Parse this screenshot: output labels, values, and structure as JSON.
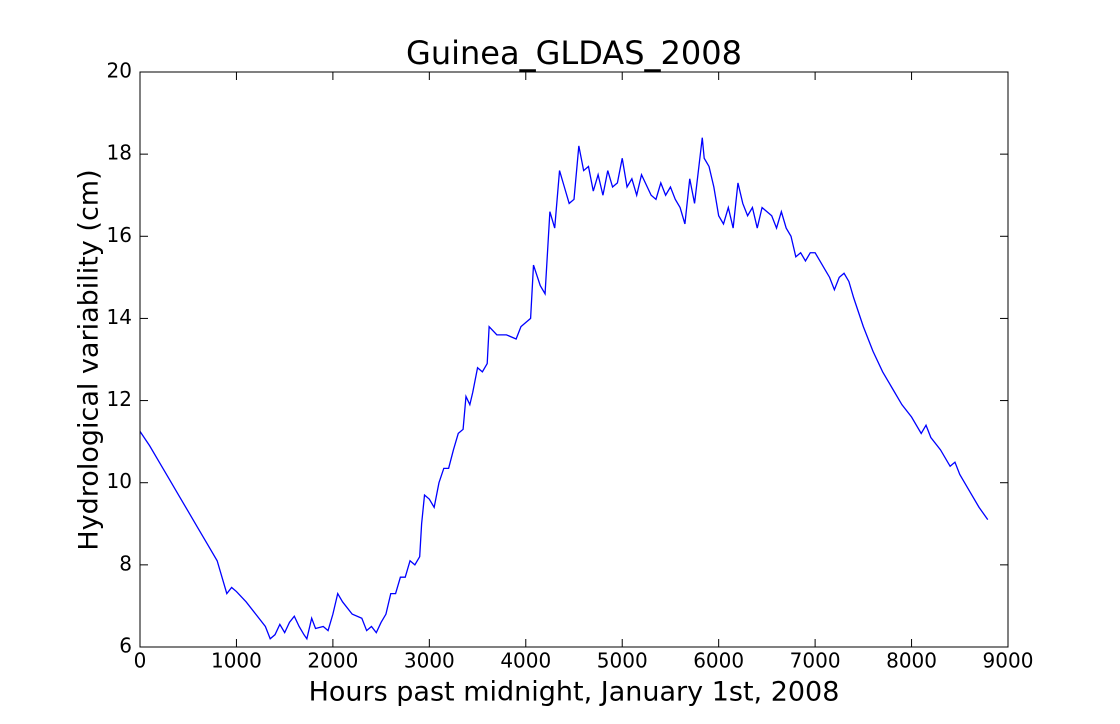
{
  "chart_data": {
    "type": "line",
    "title": "Guinea_GLDAS_2008",
    "xlabel": "Hours past midnight, January 1st, 2008",
    "ylabel": "Hydrological variability (cm)",
    "xlim": [
      0,
      9000
    ],
    "ylim": [
      6,
      20
    ],
    "xticks": [
      0,
      1000,
      2000,
      3000,
      4000,
      5000,
      6000,
      7000,
      8000,
      9000
    ],
    "yticks": [
      6,
      8,
      10,
      12,
      14,
      16,
      18,
      20
    ],
    "series": [
      {
        "color": "#0000ff",
        "x": [
          0,
          100,
          200,
          300,
          400,
          500,
          600,
          700,
          800,
          900,
          950,
          1000,
          1100,
          1200,
          1300,
          1350,
          1400,
          1450,
          1500,
          1550,
          1600,
          1650,
          1700,
          1730,
          1780,
          1820,
          1900,
          1950,
          2000,
          2050,
          2100,
          2200,
          2300,
          2350,
          2400,
          2450,
          2500,
          2550,
          2600,
          2650,
          2700,
          2750,
          2800,
          2850,
          2900,
          2920,
          2950,
          3000,
          3050,
          3100,
          3150,
          3200,
          3250,
          3300,
          3350,
          3380,
          3420,
          3450,
          3500,
          3550,
          3600,
          3620,
          3700,
          3800,
          3900,
          3950,
          4000,
          4050,
          4080,
          4150,
          4200,
          4250,
          4300,
          4350,
          4400,
          4450,
          4500,
          4550,
          4600,
          4650,
          4700,
          4750,
          4800,
          4850,
          4900,
          4950,
          5000,
          5050,
          5100,
          5150,
          5200,
          5300,
          5350,
          5400,
          5450,
          5500,
          5550,
          5600,
          5650,
          5700,
          5750,
          5800,
          5830,
          5850,
          5900,
          5950,
          6000,
          6050,
          6100,
          6150,
          6200,
          6250,
          6300,
          6350,
          6400,
          6450,
          6500,
          6550,
          6600,
          6650,
          6700,
          6750,
          6800,
          6850,
          6900,
          6950,
          7000,
          7050,
          7100,
          7150,
          7200,
          7250,
          7300,
          7350,
          7400,
          7500,
          7600,
          7700,
          7800,
          7900,
          8000,
          8100,
          8150,
          8200,
          8300,
          8400,
          8450,
          8500,
          8600,
          8700,
          8790
        ],
        "values": [
          11.25,
          10.9,
          10.5,
          10.1,
          9.7,
          9.3,
          8.9,
          8.5,
          8.1,
          7.3,
          7.45,
          7.35,
          7.1,
          6.8,
          6.5,
          6.2,
          6.3,
          6.55,
          6.35,
          6.6,
          6.75,
          6.5,
          6.3,
          6.2,
          6.7,
          6.45,
          6.5,
          6.4,
          6.8,
          7.3,
          7.1,
          6.8,
          6.7,
          6.4,
          6.5,
          6.35,
          6.6,
          6.8,
          7.3,
          7.3,
          7.7,
          7.7,
          8.1,
          8.0,
          8.2,
          9.0,
          9.7,
          9.6,
          9.4,
          10.0,
          10.35,
          10.35,
          10.8,
          11.2,
          11.3,
          12.1,
          11.9,
          12.2,
          12.8,
          12.7,
          12.9,
          13.8,
          13.6,
          13.6,
          13.5,
          13.8,
          13.9,
          14.0,
          15.3,
          14.8,
          14.6,
          16.6,
          16.2,
          17.6,
          17.2,
          16.8,
          16.9,
          18.2,
          17.6,
          17.7,
          17.1,
          17.5,
          17.0,
          17.6,
          17.2,
          17.3,
          17.9,
          17.2,
          17.4,
          17.0,
          17.5,
          17.0,
          16.9,
          17.3,
          17.0,
          17.2,
          16.9,
          16.7,
          16.3,
          17.4,
          16.8,
          17.8,
          18.4,
          17.9,
          17.7,
          17.2,
          16.5,
          16.3,
          16.7,
          16.2,
          17.3,
          16.8,
          16.5,
          16.7,
          16.2,
          16.7,
          16.6,
          16.5,
          16.2,
          16.6,
          16.2,
          16.0,
          15.5,
          15.6,
          15.4,
          15.6,
          15.6,
          15.4,
          15.2,
          15.0,
          14.7,
          15.0,
          15.1,
          14.9,
          14.5,
          13.8,
          13.2,
          12.7,
          12.3,
          11.9,
          11.6,
          11.2,
          11.4,
          11.1,
          10.8,
          10.4,
          10.5,
          10.2,
          9.8,
          9.4,
          9.1
        ]
      }
    ]
  }
}
